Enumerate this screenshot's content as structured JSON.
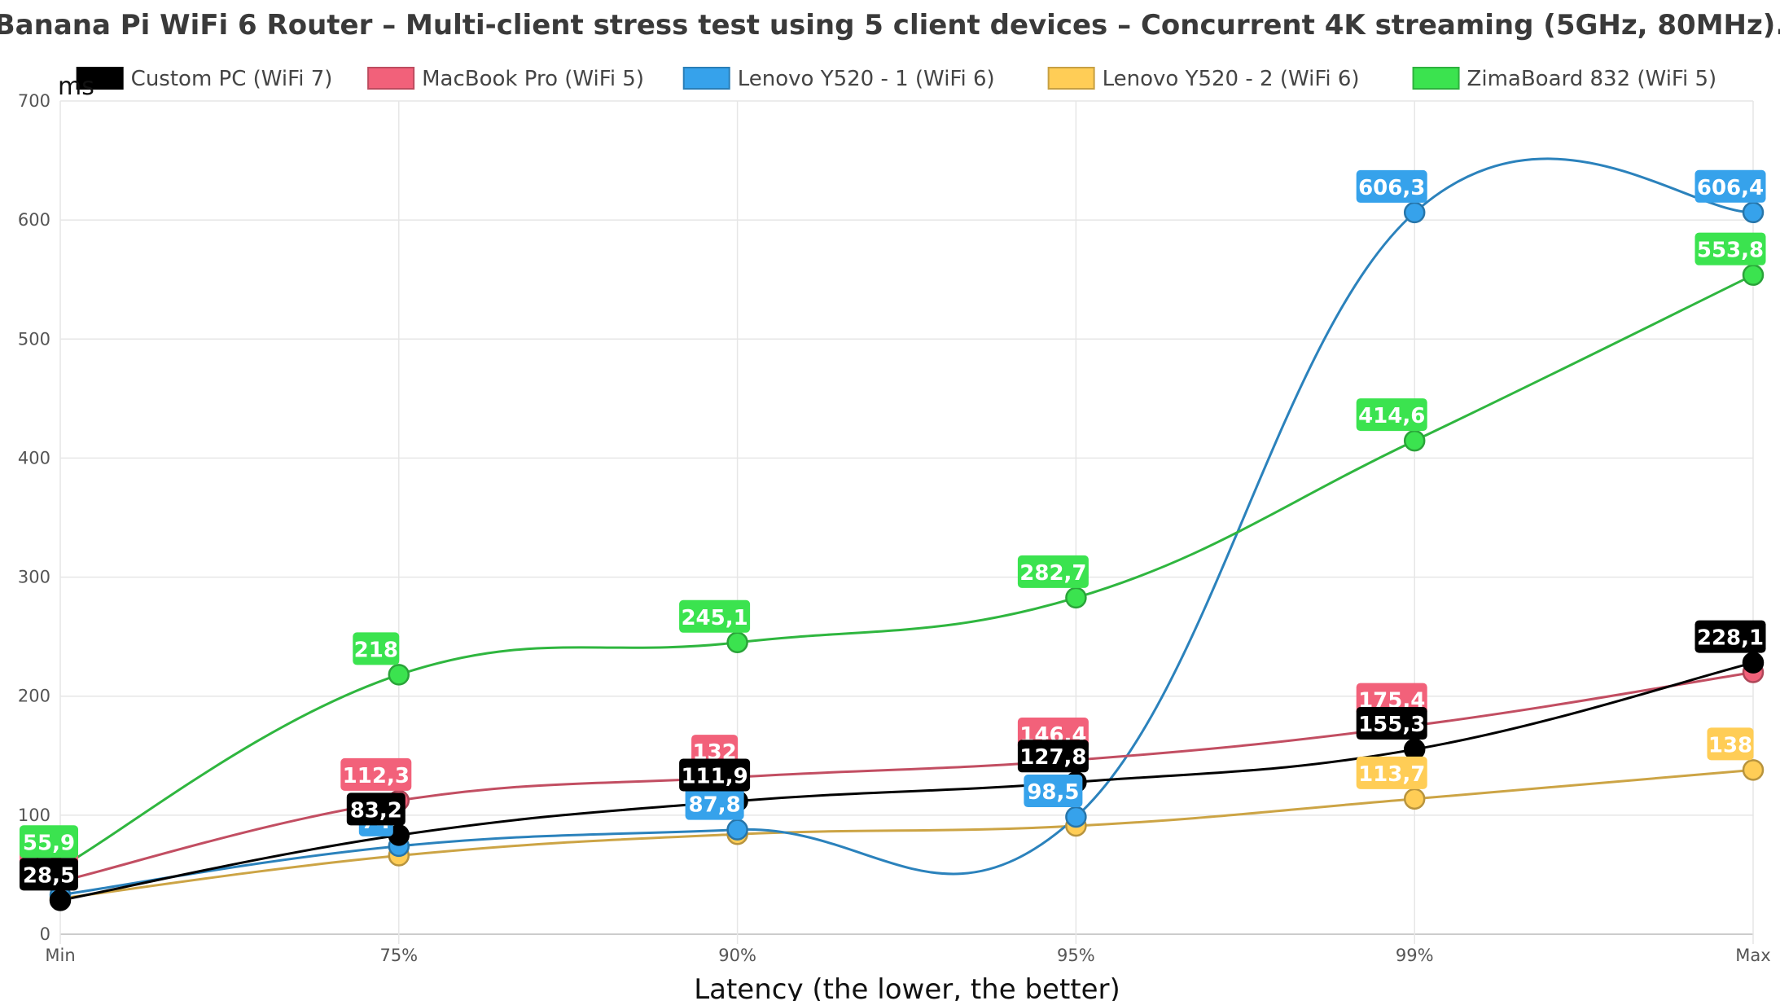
{
  "chart_data": {
    "type": "line",
    "title": "Banana Pi WiFi 6 Router – Multi-client stress test using 5 client devices – Concurrent 4K streaming (5GHz, 80MHz).",
    "xlabel": "Latency (the lower, the better)",
    "ylabel": "ms",
    "categories": [
      "Min",
      "75%",
      "90%",
      "95%",
      "99%",
      "Max"
    ],
    "ylim": [
      0,
      700
    ],
    "yticks": [
      "0",
      "100",
      "200",
      "300",
      "400",
      "500",
      "600",
      "700"
    ],
    "grid": true,
    "legend_position": "top",
    "series": [
      {
        "name": "Custom PC (WiFi 7)",
        "color": "#000000",
        "values": [
          28.5,
          83.2,
          111.9,
          127.8,
          155.3,
          228.1
        ],
        "labels": [
          "28,5",
          "83,2",
          "111,9",
          "127,8",
          "155,3",
          "228,1"
        ]
      },
      {
        "name": "MacBook Pro (WiFi 5)",
        "color": "#f2617a",
        "values": [
          44.4,
          112.3,
          132,
          146.4,
          175.4,
          220
        ],
        "labels": [
          "44,4",
          "112,3",
          "132",
          "146,4",
          "175,4",
          ""
        ]
      },
      {
        "name": "Lenovo Y520 - 1 (WiFi 6)",
        "color": "#36a2eb",
        "values": [
          33,
          74,
          87.8,
          98.5,
          606.3,
          606.4
        ],
        "labels": [
          "",
          "74",
          "87,8",
          "98,5",
          "606,3",
          "606,4"
        ]
      },
      {
        "name": "Lenovo Y520 - 2 (WiFi 6)",
        "color": "#ffcd56",
        "values": [
          30,
          66,
          84,
          91,
          113.7,
          138
        ],
        "labels": [
          "",
          "",
          "",
          "",
          "113,7",
          "138"
        ]
      },
      {
        "name": "ZimaBoard 832 (WiFi 5)",
        "color": "#3be34f",
        "values": [
          55.9,
          218,
          245.1,
          282.7,
          414.6,
          553.8
        ],
        "labels": [
          "55,9",
          "218",
          "245,1",
          "282,7",
          "414,6",
          "553,8"
        ]
      }
    ]
  }
}
